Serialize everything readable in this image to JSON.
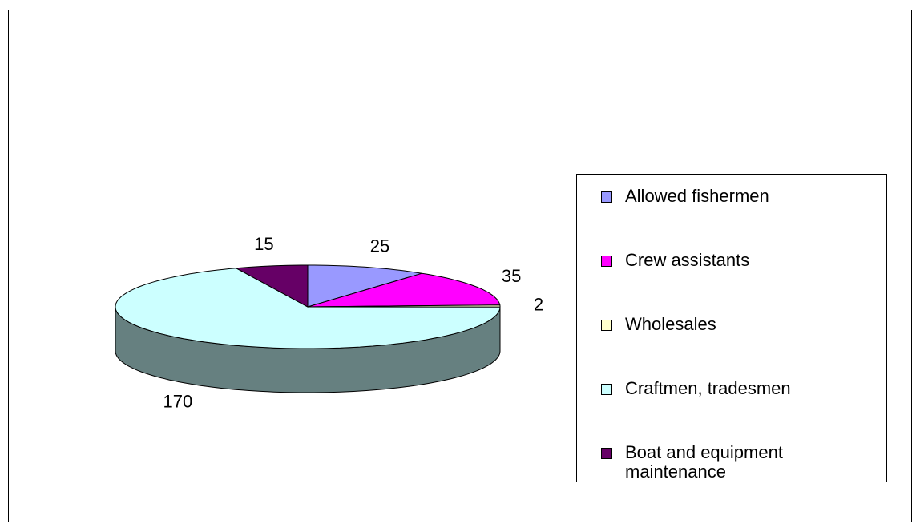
{
  "chart_data": {
    "type": "pie3d",
    "categories": [
      "Allowed fishermen",
      "Crew assistants",
      "Wholesales",
      "Craftmen, tradesmen",
      "Boat and equipment maintenance"
    ],
    "values": [
      25,
      35,
      2,
      170,
      15
    ],
    "colors": [
      "#9999ff",
      "#ff00ff",
      "#ffffcc",
      "#ccffff",
      "#660066"
    ],
    "legend": "right"
  }
}
